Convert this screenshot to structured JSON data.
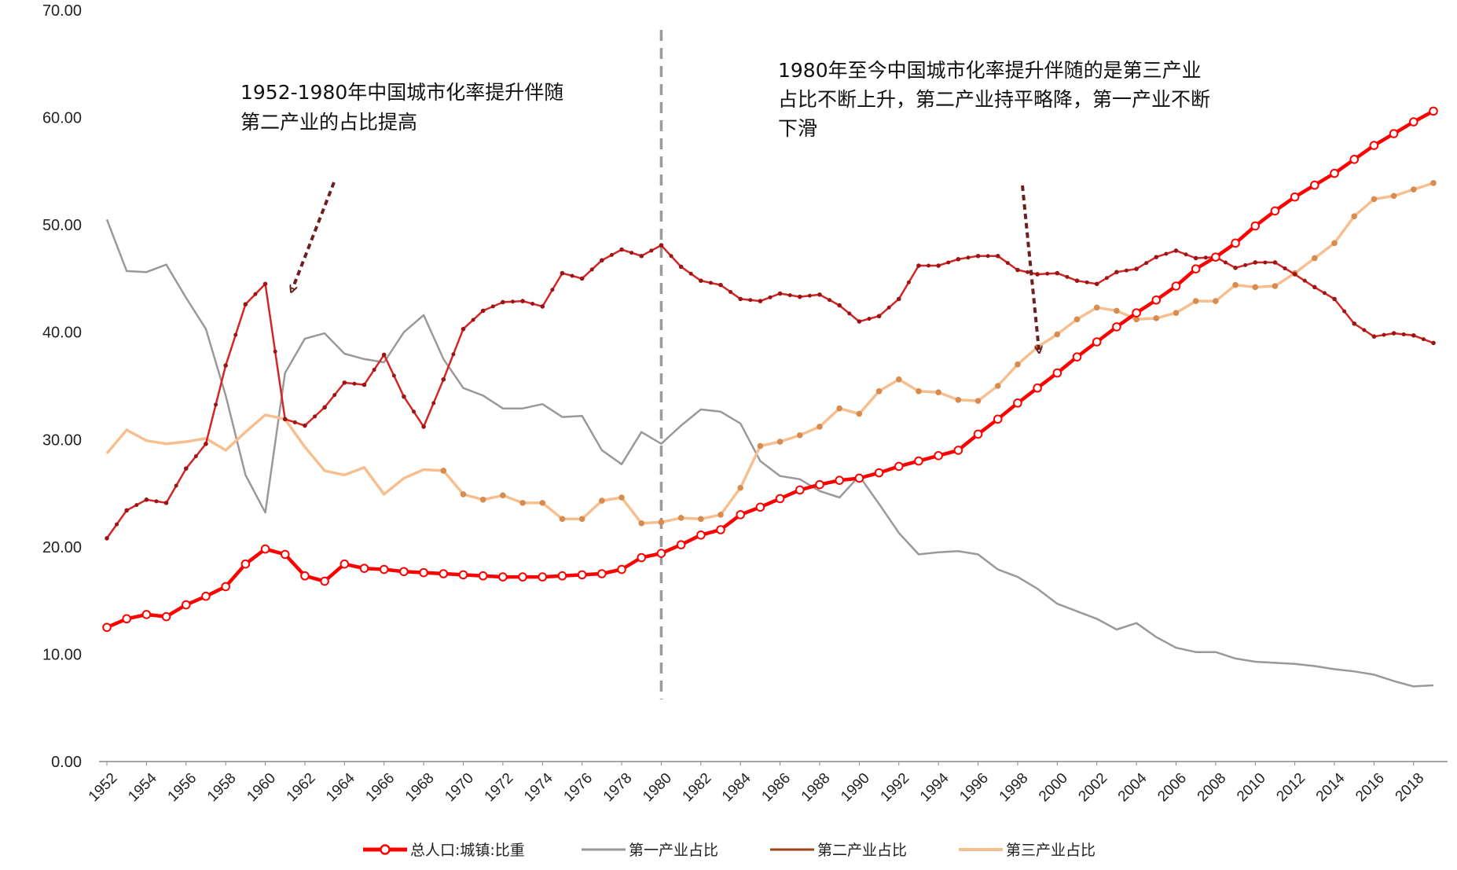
{
  "chart_data": {
    "type": "line",
    "title": "",
    "xlabel": "",
    "ylabel": "",
    "ylim": [
      0,
      70
    ],
    "y_ticks": [
      "0.00",
      "10.00",
      "20.00",
      "30.00",
      "40.00",
      "50.00",
      "60.00",
      "70.00"
    ],
    "x_ticks": [
      "1952",
      "1954",
      "1956",
      "1958",
      "1960",
      "1962",
      "1964",
      "1966",
      "1968",
      "1970",
      "1972",
      "1974",
      "1976",
      "1978",
      "1980",
      "1982",
      "1984",
      "1986",
      "1988",
      "1990",
      "1992",
      "1994",
      "1996",
      "1998",
      "2000",
      "2002",
      "2004",
      "2006",
      "2008",
      "2010",
      "2012",
      "2014",
      "2016",
      "2018"
    ],
    "x": [
      1952,
      1953,
      1954,
      1955,
      1956,
      1957,
      1958,
      1959,
      1960,
      1961,
      1962,
      1963,
      1964,
      1965,
      1966,
      1967,
      1968,
      1969,
      1970,
      1971,
      1972,
      1973,
      1974,
      1975,
      1976,
      1977,
      1978,
      1979,
      1980,
      1981,
      1982,
      1983,
      1984,
      1985,
      1986,
      1987,
      1988,
      1989,
      1990,
      1991,
      1992,
      1993,
      1994,
      1995,
      1996,
      1997,
      1998,
      1999,
      2000,
      2001,
      2002,
      2003,
      2004,
      2005,
      2006,
      2007,
      2008,
      2009,
      2010,
      2011,
      2012,
      2013,
      2014,
      2015,
      2016,
      2017,
      2018,
      2019
    ],
    "series": [
      {
        "name": "总人口:城镇:比重",
        "color": "#ff0000",
        "values": [
          12.5,
          13.3,
          13.7,
          13.5,
          14.6,
          15.4,
          16.3,
          18.4,
          19.8,
          19.3,
          17.3,
          16.8,
          18.4,
          18.0,
          17.9,
          17.7,
          17.6,
          17.5,
          17.4,
          17.3,
          17.2,
          17.2,
          17.2,
          17.3,
          17.4,
          17.5,
          17.9,
          19.0,
          19.4,
          20.2,
          21.1,
          21.6,
          23.0,
          23.7,
          24.5,
          25.3,
          25.8,
          26.2,
          26.4,
          26.9,
          27.5,
          28.0,
          28.5,
          29.0,
          30.5,
          31.9,
          33.4,
          34.8,
          36.2,
          37.7,
          39.1,
          40.5,
          41.8,
          43.0,
          44.3,
          45.9,
          47.0,
          48.3,
          49.9,
          51.3,
          52.6,
          53.7,
          54.8,
          56.1,
          57.4,
          58.5,
          59.6,
          60.6
        ]
      },
      {
        "name": "第一产业占比",
        "color": "#999999",
        "values": [
          50.5,
          45.7,
          45.6,
          46.3,
          43.2,
          40.3,
          34.1,
          26.7,
          23.2,
          36.2,
          39.4,
          39.9,
          38.0,
          37.5,
          37.2,
          40.0,
          41.6,
          37.5,
          34.8,
          34.1,
          32.9,
          32.9,
          33.3,
          32.1,
          32.2,
          29.0,
          27.7,
          30.7,
          29.6,
          31.3,
          32.8,
          32.6,
          31.5,
          28.0,
          26.6,
          26.3,
          25.2,
          24.6,
          26.6,
          24.0,
          21.3,
          19.3,
          19.5,
          19.6,
          19.3,
          17.9,
          17.2,
          16.1,
          14.7,
          14.0,
          13.3,
          12.3,
          12.9,
          11.6,
          10.6,
          10.2,
          10.2,
          9.6,
          9.3,
          9.2,
          9.1,
          8.9,
          8.6,
          8.4,
          8.1,
          7.5,
          7.0,
          7.1
        ]
      },
      {
        "name": "第二产业占比",
        "color": "#a51e1e",
        "values": [
          20.8,
          23.4,
          24.4,
          24.1,
          27.3,
          29.6,
          36.9,
          42.6,
          44.5,
          31.9,
          31.3,
          33.0,
          35.3,
          35.1,
          37.9,
          34.0,
          31.2,
          35.6,
          40.3,
          42.0,
          42.8,
          42.9,
          42.4,
          45.5,
          45.0,
          46.7,
          47.7,
          47.1,
          48.1,
          46.1,
          44.8,
          44.4,
          43.1,
          42.9,
          43.6,
          43.3,
          43.5,
          42.5,
          41.0,
          41.5,
          43.1,
          46.2,
          46.2,
          46.8,
          47.1,
          47.1,
          45.8,
          45.4,
          45.5,
          44.8,
          44.5,
          45.6,
          45.9,
          47.0,
          47.6,
          46.9,
          47.0,
          46.0,
          46.5,
          46.5,
          45.4,
          44.2,
          43.1,
          40.8,
          39.6,
          39.9,
          39.7,
          39.0
        ]
      },
      {
        "name": "第三产业占比",
        "color": "#f7bf8f",
        "values": [
          28.7,
          30.9,
          29.9,
          29.6,
          29.8,
          30.1,
          29.0,
          30.7,
          32.3,
          31.9,
          29.3,
          27.1,
          26.7,
          27.4,
          24.9,
          26.4,
          27.2,
          27.1,
          24.9,
          24.4,
          24.8,
          24.1,
          24.1,
          22.6,
          22.6,
          24.3,
          24.6,
          22.2,
          22.3,
          22.7,
          22.6,
          23.0,
          25.5,
          29.4,
          29.8,
          30.4,
          31.2,
          32.9,
          32.4,
          34.5,
          35.6,
          34.5,
          34.4,
          33.7,
          33.6,
          35.0,
          37.0,
          38.6,
          39.8,
          41.2,
          42.3,
          42.0,
          41.2,
          41.3,
          41.8,
          42.9,
          42.9,
          44.4,
          44.2,
          44.3,
          45.5,
          46.9,
          48.3,
          50.8,
          52.4,
          52.7,
          53.3,
          53.9
        ]
      }
    ],
    "reference_line": {
      "x": 1980,
      "style": "dashed"
    },
    "annotations": [
      {
        "lines": [
          "1952-1980年中国城市化率提升伴随",
          "第二产业的占比提高"
        ]
      },
      {
        "lines": [
          "1980年至今中国城市化率提升伴随的是第三产业",
          "占比不断上升，第二产业持平略降，第一产业不断",
          "下滑"
        ]
      }
    ],
    "legend_position": "bottom"
  }
}
